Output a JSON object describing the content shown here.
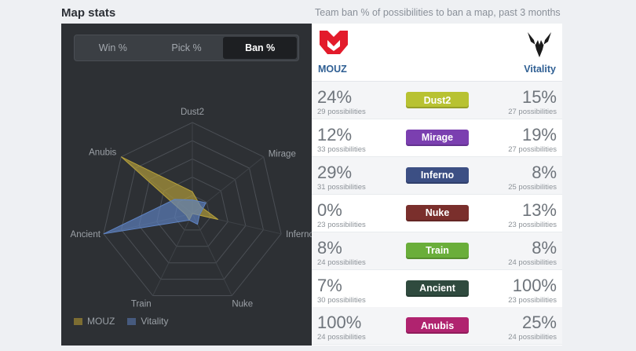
{
  "header": {
    "title": "Map stats",
    "subtitle": "Team ban % of possibilities to ban a map, past 3 months"
  },
  "tabs": [
    {
      "label": "Win %",
      "active": false
    },
    {
      "label": "Pick %",
      "active": false
    },
    {
      "label": "Ban %",
      "active": true
    }
  ],
  "teams": {
    "left": {
      "name": "MOUZ",
      "logo": "mouz-logo-icon",
      "color": "#e31b2b"
    },
    "right": {
      "name": "Vitality",
      "logo": "vitality-logo-icon",
      "color": "#1a1a1a"
    }
  },
  "rows": [
    {
      "map": "Dust2",
      "color": "#b8c232",
      "left_pct": "24%",
      "left_poss": "29 possibilities",
      "right_pct": "15%",
      "right_poss": "27 possibilities"
    },
    {
      "map": "Mirage",
      "color": "#7b3fb0",
      "left_pct": "12%",
      "left_poss": "33 possibilities",
      "right_pct": "19%",
      "right_poss": "27 possibilities"
    },
    {
      "map": "Inferno",
      "color": "#3c4f84",
      "left_pct": "29%",
      "left_poss": "31 possibilities",
      "right_pct": "8%",
      "right_poss": "25 possibilities"
    },
    {
      "map": "Nuke",
      "color": "#7a2f2c",
      "left_pct": "0%",
      "left_poss": "23 possibilities",
      "right_pct": "13%",
      "right_poss": "23 possibilities"
    },
    {
      "map": "Train",
      "color": "#6aae3a",
      "left_pct": "8%",
      "left_poss": "24 possibilities",
      "right_pct": "8%",
      "right_poss": "24 possibilities"
    },
    {
      "map": "Ancient",
      "color": "#2f4a3e",
      "left_pct": "7%",
      "left_poss": "30 possibilities",
      "right_pct": "100%",
      "right_poss": "23 possibilities"
    },
    {
      "map": "Anubis",
      "color": "#b0236f",
      "left_pct": "100%",
      "left_poss": "24 possibilities",
      "right_pct": "25%",
      "right_poss": "24 possibilities"
    }
  ],
  "chart_data": {
    "type": "radar",
    "axes": [
      "Dust2",
      "Mirage",
      "Inferno",
      "Nuke",
      "Train",
      "Ancient",
      "Anubis"
    ],
    "range": [
      0,
      100
    ],
    "series": [
      {
        "name": "MOUZ",
        "color": "#b8a23a",
        "values": [
          24,
          12,
          29,
          0,
          8,
          7,
          100
        ]
      },
      {
        "name": "Vitality",
        "color": "#5f84c4",
        "values": [
          15,
          19,
          8,
          13,
          8,
          100,
          25
        ]
      }
    ],
    "legend_position": "bottom-left"
  }
}
